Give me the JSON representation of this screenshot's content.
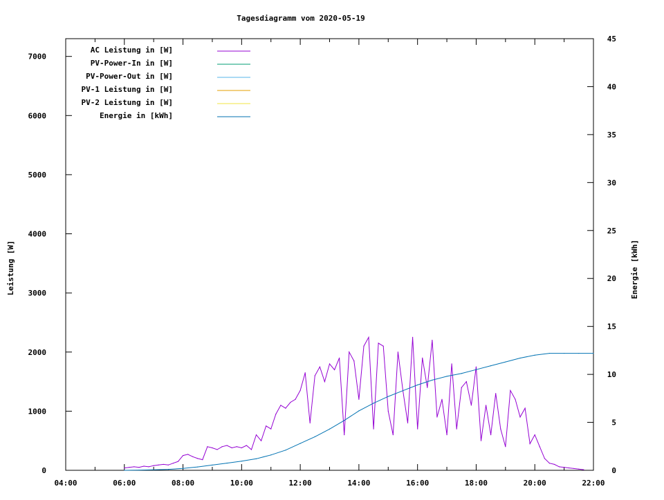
{
  "chart_data": {
    "type": "line",
    "title": "Tagesdiagramm vom 2020-05-19",
    "xlabel": "",
    "ylabel": "Leistung [W]",
    "y2label": "Energie [kWh]",
    "xlim_hours": [
      4,
      22
    ],
    "ylim": [
      0,
      7300
    ],
    "y2lim": [
      0,
      45
    ],
    "x_ticks": [
      "04:00",
      "06:00",
      "08:00",
      "10:00",
      "12:00",
      "14:00",
      "16:00",
      "18:00",
      "20:00",
      "22:00"
    ],
    "y_ticks": [
      "0",
      "1000",
      "2000",
      "3000",
      "4000",
      "5000",
      "6000",
      "7000"
    ],
    "y2_ticks": [
      "0",
      "5",
      "10",
      "15",
      "20",
      "25",
      "30",
      "35",
      "40",
      "45"
    ],
    "legend_position": "top-left",
    "legend": [
      {
        "label": "AC Leistung in [W]",
        "color": "#9400d3"
      },
      {
        "label": "PV-Power-In in [W]",
        "color": "#009e73"
      },
      {
        "label": "PV-Power-Out in [W]",
        "color": "#56b4e9"
      },
      {
        "label": "PV-1 Leistung in [W]",
        "color": "#e69f00"
      },
      {
        "label": "PV-2 Leistung in [W]",
        "color": "#f0e442"
      },
      {
        "label": "Energie in [kWh]",
        "color": "#0072b2"
      }
    ],
    "series": [
      {
        "name": "AC Leistung in [W]",
        "axis": "y",
        "color": "#9400d3",
        "x_start_hour": 6,
        "x_step_minutes": 10,
        "values": [
          40,
          50,
          60,
          50,
          70,
          60,
          80,
          90,
          100,
          90,
          120,
          150,
          250,
          270,
          230,
          200,
          180,
          400,
          380,
          350,
          400,
          420,
          380,
          400,
          380,
          420,
          350,
          600,
          500,
          750,
          700,
          950,
          1100,
          1050,
          1150,
          1200,
          1350,
          1650,
          800,
          1600,
          1750,
          1500,
          1800,
          1700,
          1900,
          600,
          2000,
          1850,
          1200,
          2100,
          2250,
          700,
          2150,
          2100,
          1000,
          600,
          2000,
          1350,
          800,
          2250,
          700,
          1900,
          1400,
          2200,
          900,
          1200,
          600,
          1800,
          700,
          1400,
          1500,
          1100,
          1750,
          500,
          1100,
          600,
          1300,
          700,
          400,
          1350,
          1200,
          900,
          1050,
          450,
          600,
          400,
          200,
          120,
          100,
          60,
          50,
          40,
          30,
          20,
          10
        ]
      },
      {
        "name": "Energie in [kWh]",
        "axis": "y2",
        "color": "#0072b2",
        "x_start_hour": 6,
        "x_step_minutes": 30,
        "values": [
          0,
          0.02,
          0.05,
          0.1,
          0.2,
          0.35,
          0.55,
          0.75,
          0.95,
          1.2,
          1.6,
          2.1,
          2.8,
          3.5,
          4.3,
          5.2,
          6.2,
          7.0,
          7.7,
          8.3,
          8.9,
          9.4,
          9.8,
          10.1,
          10.5,
          10.9,
          11.3,
          11.7,
          12.0,
          12.2,
          12.2,
          12.2,
          12.2
        ]
      }
    ]
  }
}
